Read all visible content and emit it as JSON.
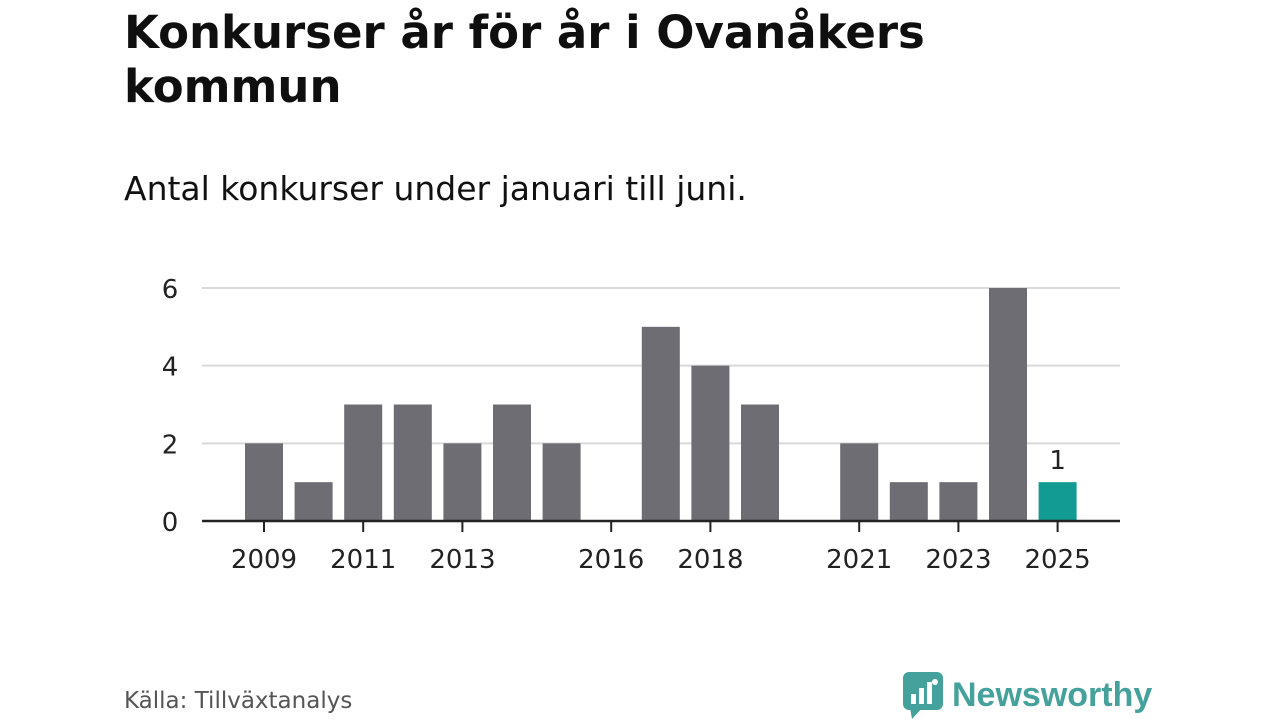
{
  "header": {
    "title": "Konkurser år för år i Ovanåkers kommun",
    "subtitle": "Antal konkurser under januari till juni."
  },
  "footer": {
    "source": "Källa: Tillväxtanalys",
    "brand": "Newsworthy",
    "brand_icon": "chart-bubble-icon"
  },
  "colors": {
    "bar": "#6e6d73",
    "highlight": "#119b92",
    "grid": "#d9d9d9",
    "axis": "#222222",
    "brand": "#45a19b"
  },
  "chart_data": {
    "type": "bar",
    "title": "Konkurser år för år i Ovanåkers kommun",
    "subtitle": "Antal konkurser under januari till juni.",
    "categories": [
      "2009",
      "2010",
      "2011",
      "2012",
      "2013",
      "2014",
      "2015",
      "2016",
      "2017",
      "2018",
      "2019",
      "2020",
      "2021",
      "2022",
      "2023",
      "2024",
      "2025"
    ],
    "values": [
      2,
      1,
      3,
      3,
      2,
      3,
      2,
      0,
      5,
      4,
      3,
      0,
      2,
      1,
      1,
      6,
      1
    ],
    "highlight_index": 16,
    "data_labels": [
      {
        "category": "2025",
        "text": "1"
      }
    ],
    "x_tick_labels": [
      "2009",
      "2011",
      "2013",
      "2016",
      "2018",
      "2021",
      "2023",
      "2025"
    ],
    "y_ticks": [
      0,
      2,
      4,
      6
    ],
    "ylim": [
      0,
      6
    ],
    "grid": true,
    "legend": "none",
    "xlabel": "",
    "ylabel": ""
  }
}
